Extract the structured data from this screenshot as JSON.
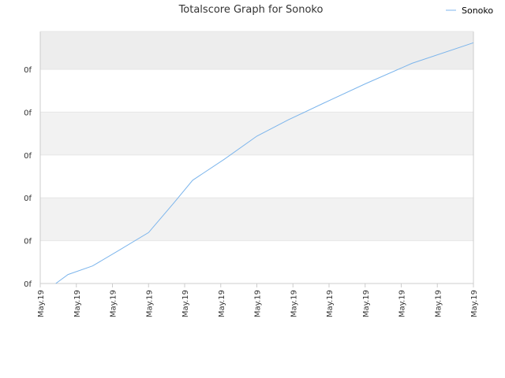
{
  "chart_data": {
    "type": "line",
    "title": "Totalscore Graph for Sonoko",
    "xlabel": "",
    "ylabel": "",
    "grid": true,
    "legend": "top-right",
    "colors": {
      "series": "#7cb5ec",
      "grid_band_a": "#f2f2f2",
      "grid_band_b": "#ffffff",
      "grid_band_top": "#ededed",
      "grid_line": "#e6e6e6",
      "axis": "#cccccc",
      "text": "#333333"
    },
    "x_tick_labels": [
      "May.19",
      "May.19",
      "May.19",
      "May.19",
      "May.19",
      "May.19",
      "May.19",
      "May.19",
      "May.19",
      "May.19",
      "May.19",
      "May.19",
      "May.19"
    ],
    "y_tick_labels": [
      "0f",
      "0f",
      "0f",
      "0f",
      "0f",
      "0f"
    ],
    "ylim": [
      0,
      6
    ],
    "xlim": [
      0,
      12
    ],
    "series": [
      {
        "name": "Sonoko",
        "x": [
          0.43,
          0.77,
          1.45,
          2.15,
          3.0,
          3.7,
          4.22,
          5.1,
          6.0,
          6.87,
          7.85,
          9.0,
          10.3,
          12.0
        ],
        "y": [
          0.0,
          0.21,
          0.41,
          0.76,
          1.19,
          1.88,
          2.41,
          2.9,
          3.44,
          3.82,
          4.21,
          4.66,
          5.14,
          5.62
        ]
      }
    ]
  }
}
